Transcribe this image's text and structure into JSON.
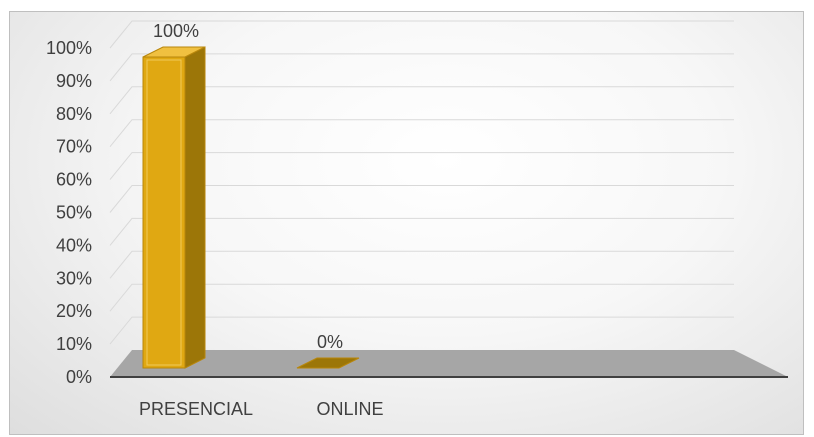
{
  "chart_data": {
    "type": "bar",
    "title": "",
    "xlabel": "",
    "ylabel": "",
    "categories": [
      "PRESENCIAL",
      "ONLINE"
    ],
    "values": [
      100,
      0
    ],
    "data_labels": [
      "100%",
      "0%"
    ],
    "ylim": [
      0,
      100
    ],
    "y_ticks": [
      0,
      10,
      20,
      30,
      40,
      50,
      60,
      70,
      80,
      90,
      100
    ],
    "y_tick_labels": [
      "0%",
      "10%",
      "20%",
      "30%",
      "40%",
      "50%",
      "60%",
      "70%",
      "80%",
      "90%",
      "100%"
    ],
    "grid": true,
    "legend": "none",
    "style": "3d-column",
    "colors": {
      "bar_front": "#e0a812",
      "bar_side": "#9c7608",
      "bar_top": "#f0c040",
      "bar_edge": "#b8860b",
      "floor": "#a6a6a6",
      "gridline": "#d9d9d9",
      "axis_line": "#404040"
    }
  }
}
